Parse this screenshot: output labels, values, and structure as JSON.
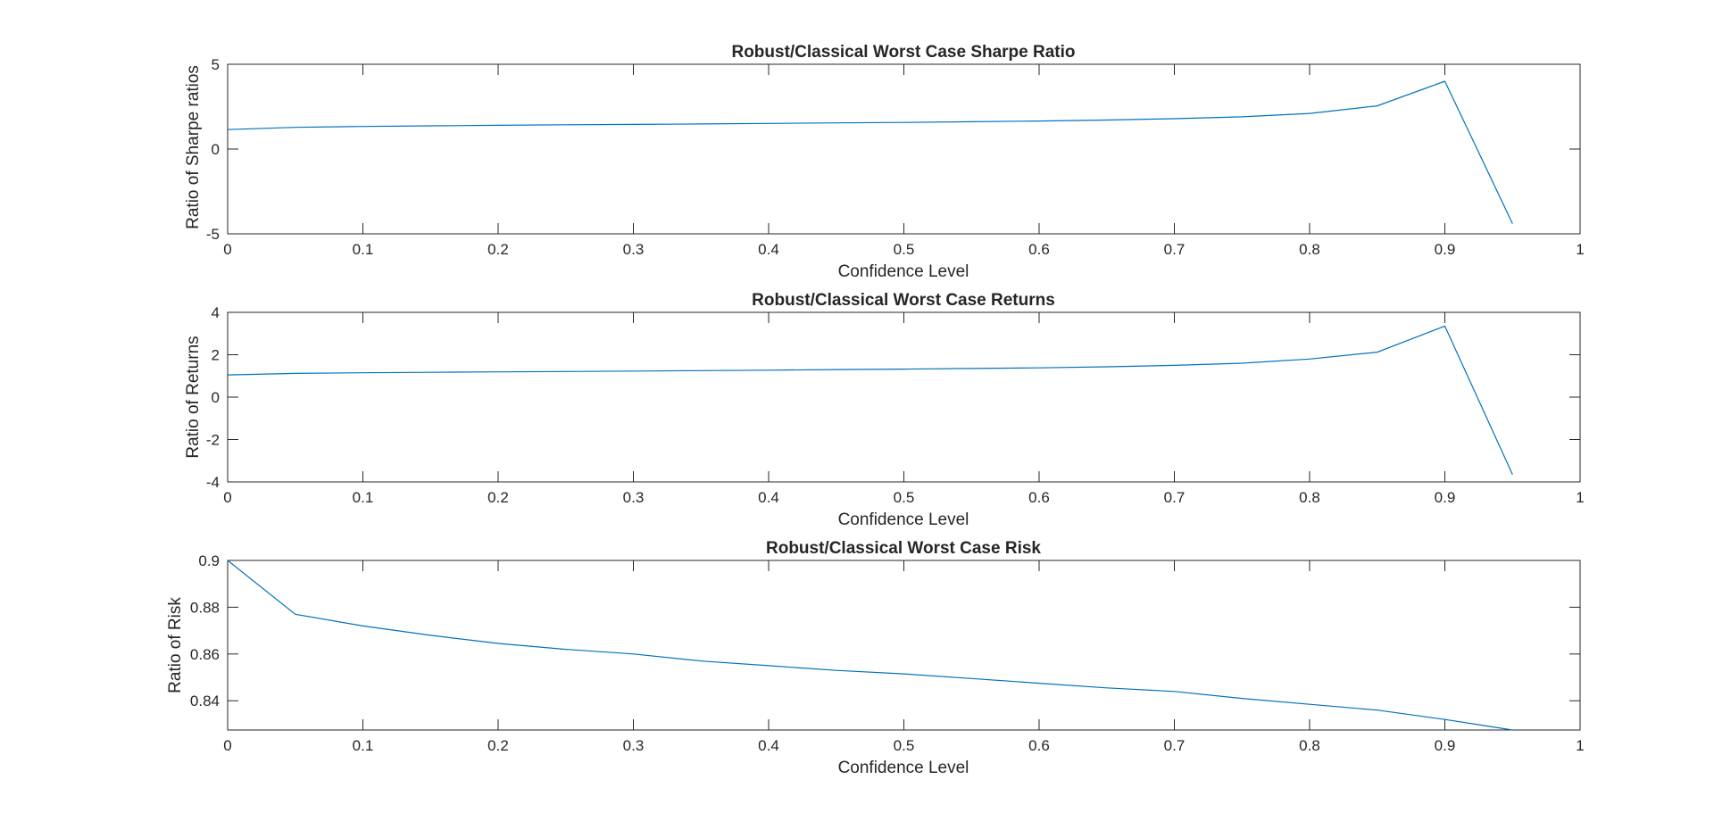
{
  "colors": {
    "line": "#0072BD",
    "axes": "#262626",
    "background": "#ffffff"
  },
  "chart_data": [
    {
      "type": "line",
      "title": "Robust/Classical Worst Case Sharpe Ratio",
      "xlabel": "Confidence Level",
      "ylabel": "Ratio of Sharpe ratios",
      "xlim": [
        0,
        1
      ],
      "ylim": [
        -5,
        5
      ],
      "xticks": [
        "0",
        "0.1",
        "0.2",
        "0.3",
        "0.4",
        "0.5",
        "0.6",
        "0.7",
        "0.8",
        "0.9",
        "1"
      ],
      "yticks": [
        "-5",
        "0",
        "5"
      ],
      "x": [
        0,
        0.05,
        0.1,
        0.15,
        0.2,
        0.25,
        0.3,
        0.35,
        0.4,
        0.45,
        0.5,
        0.55,
        0.6,
        0.65,
        0.7,
        0.75,
        0.8,
        0.85,
        0.9,
        0.95
      ],
      "y": [
        1.15,
        1.28,
        1.33,
        1.37,
        1.4,
        1.43,
        1.45,
        1.48,
        1.51,
        1.54,
        1.57,
        1.61,
        1.65,
        1.71,
        1.79,
        1.9,
        2.1,
        2.55,
        4.0,
        -4.4
      ]
    },
    {
      "type": "line",
      "title": "Robust/Classical Worst Case Returns",
      "xlabel": "Confidence Level",
      "ylabel": "Ratio of Returns",
      "xlim": [
        0,
        1
      ],
      "ylim": [
        -4,
        4
      ],
      "xticks": [
        "0",
        "0.1",
        "0.2",
        "0.3",
        "0.4",
        "0.5",
        "0.6",
        "0.7",
        "0.8",
        "0.9",
        "1"
      ],
      "yticks": [
        "-4",
        "-2",
        "0",
        "2",
        "4"
      ],
      "x": [
        0,
        0.05,
        0.1,
        0.15,
        0.2,
        0.25,
        0.3,
        0.35,
        0.4,
        0.45,
        0.5,
        0.55,
        0.6,
        0.65,
        0.7,
        0.75,
        0.8,
        0.85,
        0.9,
        0.95
      ],
      "y": [
        1.05,
        1.12,
        1.15,
        1.17,
        1.19,
        1.21,
        1.23,
        1.25,
        1.27,
        1.3,
        1.32,
        1.35,
        1.38,
        1.43,
        1.5,
        1.6,
        1.8,
        2.12,
        3.35,
        -3.65
      ]
    },
    {
      "type": "line",
      "title": "Robust/Classical Worst Case Risk",
      "xlabel": "Confidence Level",
      "ylabel": "Ratio of Risk",
      "xlim": [
        0,
        1
      ],
      "ylim": [
        0.8275,
        0.9
      ],
      "xticks": [
        "0",
        "0.1",
        "0.2",
        "0.3",
        "0.4",
        "0.5",
        "0.6",
        "0.7",
        "0.8",
        "0.9",
        "1"
      ],
      "yticks": [
        "0.84",
        "0.86",
        "0.88",
        "0.9"
      ],
      "ytick_values": [
        0.84,
        0.86,
        0.88,
        0.9
      ],
      "x": [
        0,
        0.05,
        0.1,
        0.15,
        0.2,
        0.25,
        0.3,
        0.35,
        0.4,
        0.45,
        0.5,
        0.55,
        0.6,
        0.65,
        0.7,
        0.75,
        0.8,
        0.85,
        0.9,
        0.95
      ],
      "y": [
        0.9,
        0.877,
        0.872,
        0.868,
        0.8645,
        0.862,
        0.86,
        0.857,
        0.855,
        0.853,
        0.8515,
        0.8495,
        0.8475,
        0.8455,
        0.844,
        0.841,
        0.8385,
        0.836,
        0.832,
        0.8275
      ]
    }
  ]
}
